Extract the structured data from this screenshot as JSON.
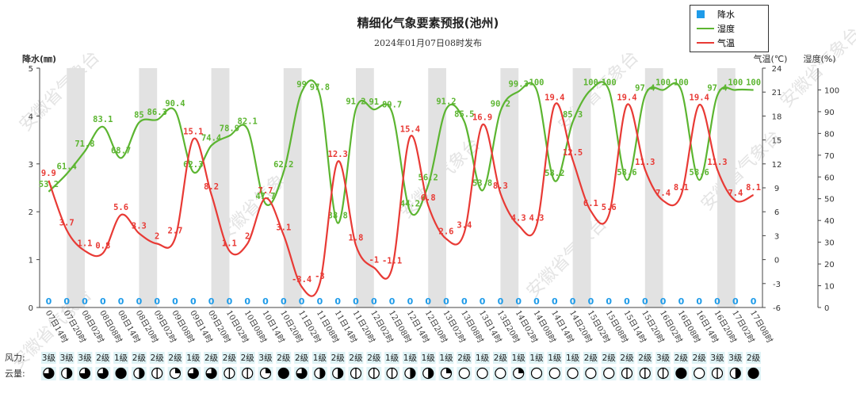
{
  "chart_data": {
    "type": "line",
    "title": "精细化气象要素预报(池州)",
    "subtitle": "2024年01月07日08时发布",
    "legend": {
      "placement": "top-right",
      "entries": [
        {
          "label": "降水",
          "color": "#1e9be9",
          "symbol": "square"
        },
        {
          "label": "湿度",
          "color": "#5cb531",
          "symbol": "line"
        },
        {
          "label": "气温",
          "color": "#e83a35",
          "symbol": "line"
        }
      ]
    },
    "axes": {
      "left": {
        "label": "降水(㎜)",
        "ticks": [
          "0",
          "1",
          "2",
          "3",
          "4",
          "5"
        ],
        "range": [
          0,
          5
        ]
      },
      "temp": {
        "label": "气温(℃)",
        "ticks": [
          "-6",
          "-3",
          "0",
          "3",
          "6",
          "9",
          "12",
          "15",
          "18",
          "21",
          "24"
        ],
        "range": [
          -6,
          24
        ]
      },
      "hum": {
        "label": "湿度(%)",
        "ticks": [
          "0",
          "10",
          "20",
          "30",
          "40",
          "50",
          "60",
          "70",
          "80",
          "90",
          "100"
        ],
        "range": [
          0,
          110
        ]
      }
    },
    "x": [
      "07日14时",
      "07日20时",
      "08日02时",
      "08日08时",
      "08日14时",
      "08日20时",
      "09日02时",
      "09日08时",
      "09日14时",
      "09日20时",
      "10日02时",
      "10日08时",
      "10日14时",
      "10日20时",
      "11日02时",
      "11日08时",
      "11日14时",
      "11日20时",
      "12日02时",
      "12日08时",
      "12日14时",
      "12日20时",
      "13日02时",
      "13日08时",
      "13日14时",
      "13日20时",
      "14日02时",
      "14日08时",
      "14日14时",
      "14日20时",
      "15日02时",
      "15日08时",
      "15日14时",
      "15日20时",
      "16日02时",
      "16日08时",
      "16日14时",
      "16日20时",
      "17日02时",
      "17日08时"
    ],
    "shaded_columns": [
      1,
      5,
      9,
      13,
      17,
      21,
      25,
      29,
      33,
      37
    ],
    "series": [
      {
        "name": "降水",
        "axis": "left",
        "values": [
          0,
          0,
          0,
          0,
          0,
          0,
          0,
          0,
          0,
          0,
          0,
          0,
          0,
          0,
          0,
          0,
          0,
          0,
          0,
          0,
          0,
          0,
          0,
          0,
          0,
          0,
          0,
          0,
          0,
          0,
          0,
          0,
          0,
          0,
          0,
          0,
          0,
          0,
          0,
          0
        ],
        "labels": [
          "0",
          "0",
          "0",
          "0",
          "0",
          "0",
          "0",
          "0",
          "0",
          "0",
          "0",
          "0",
          "0",
          "0",
          "0",
          "0",
          "0",
          "0",
          "0",
          "0",
          "0",
          "0",
          "0",
          "0",
          "0",
          "0",
          "0",
          "0",
          "0",
          "0",
          "0",
          "0",
          "0",
          "0",
          "0",
          "0",
          "0",
          "0",
          "0",
          "0"
        ]
      },
      {
        "name": "湿度",
        "axis": "hum",
        "values": [
          53.2,
          61.4,
          71.8,
          83.1,
          68.7,
          85,
          86.3,
          90.4,
          62.3,
          74.4,
          78.9,
          82.1,
          47.7,
          62.2,
          99,
          97.8,
          38.8,
          91.2,
          91,
          89.7,
          44.2,
          56.2,
          91.2,
          85.5,
          53.8,
          90.2,
          99.3,
          100,
          58.2,
          85.3,
          100,
          100,
          58.6,
          97.4,
          100,
          100,
          58.6,
          97.4,
          100,
          100
        ],
        "labels": [
          "53.2",
          "61.4",
          "71.8",
          "83.1",
          "68.7",
          "85",
          "86.3",
          "90.4",
          "62.3",
          "74.4",
          "78.9",
          "82.1",
          "47.7",
          "62.2",
          "99",
          "97.8",
          "38.8",
          "91.2",
          "91",
          "89.7",
          "44.2",
          "56.2",
          "91.2",
          "85.5",
          "53.8",
          "90.2",
          "99.3",
          "100",
          "58.2",
          "85.3",
          "100",
          "100",
          "58.6",
          "97.4",
          "100",
          "100",
          "58.6",
          "97.4",
          "100",
          "100"
        ]
      },
      {
        "name": "气温",
        "axis": "temp",
        "values": [
          9.9,
          3.7,
          1.1,
          0.8,
          5.6,
          3.3,
          2,
          2.7,
          15.1,
          8.2,
          1.1,
          2,
          7.7,
          3.1,
          -3.4,
          -3,
          12.3,
          1.8,
          -1,
          -1.1,
          15.4,
          6.8,
          2.6,
          3.4,
          16.9,
          8.3,
          4.3,
          4.3,
          19.4,
          12.5,
          6.1,
          5.6,
          19.4,
          11.3,
          7.4,
          8.1,
          19.4,
          11.3,
          7.4,
          8.1
        ],
        "labels": [
          "9.9",
          "3.7",
          "1.1",
          "0.8",
          "5.6",
          "3.3",
          "2",
          "2.7",
          "15.1",
          "8.2",
          "1.1",
          "2",
          "7.7",
          "3.1",
          "-3.4",
          "-3",
          "12.3",
          "1.8",
          "-1",
          "-1.1",
          "15.4",
          "6.8",
          "2.6",
          "3.4",
          "16.9",
          "8.3",
          "4.3",
          "4.3",
          "19.4",
          "12.5",
          "6.1",
          "5.6",
          "19.4",
          "11.3",
          "7.4",
          "8.1",
          "19.4",
          "11.3",
          "7.4",
          "8.1"
        ]
      }
    ],
    "wind": {
      "label": "风力:",
      "values": [
        "3级",
        "3级",
        "3级",
        "2级",
        "1级",
        "2级",
        "2级",
        "2级",
        "1级",
        "2级",
        "2级",
        "2级",
        "3级",
        "2级",
        "2级",
        "1级",
        "2级",
        "2级",
        "2级",
        "1级",
        "1级",
        "1级",
        "1级",
        "2级",
        "1级",
        "2级",
        "1级",
        "1级",
        "1级",
        "1级",
        "2级",
        "2级",
        "2级",
        "2级",
        "3级",
        "2级",
        "2级",
        "3级",
        "3级",
        "2级"
      ]
    },
    "cloud": {
      "label": "云量:",
      "values": [
        "mostly",
        "half-v",
        "mostly",
        "mostly",
        "full",
        "half-v",
        "line",
        "quarter",
        "mostly",
        "mostly",
        "line",
        "line",
        "quarter",
        "full",
        "mostly-b",
        "half-v",
        "half-v",
        "line",
        "line",
        "line",
        "half-v",
        "half-v",
        "quarter",
        "empty",
        "empty",
        "empty",
        "quarter",
        "empty",
        "empty",
        "empty",
        "empty",
        "empty",
        "line",
        "line",
        "line",
        "full",
        "empty",
        "line",
        "half-v",
        "full"
      ]
    },
    "watermark": "安徽省气象台",
    "grid": false
  }
}
